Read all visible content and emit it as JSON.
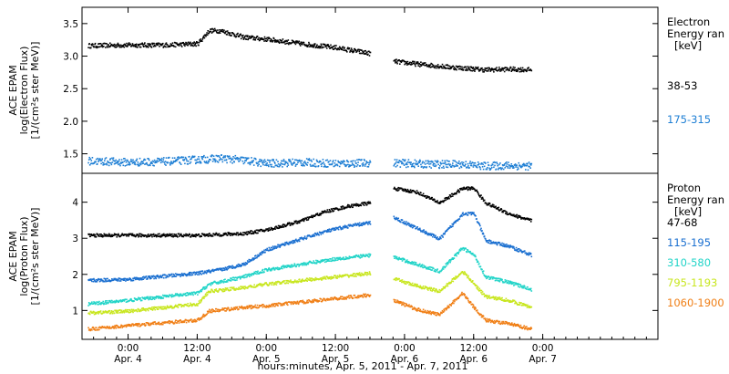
{
  "x_axis": {
    "title": "hours:minutes, Apr.  5, 2011 - Apr.  7, 2011",
    "range_hours": [
      -8,
      92
    ],
    "ticks": [
      {
        "h": 0,
        "time": "0:00",
        "day": "Apr. 4"
      },
      {
        "h": 12,
        "time": "12:00",
        "day": "Apr. 4"
      },
      {
        "h": 24,
        "time": "0:00",
        "day": "Apr. 5"
      },
      {
        "h": 36,
        "time": "12:00",
        "day": "Apr. 5"
      },
      {
        "h": 48,
        "time": "0:00",
        "day": "Apr. 6"
      },
      {
        "h": 60,
        "time": "12:00",
        "day": "Apr. 6"
      },
      {
        "h": 72,
        "time": "0:00",
        "day": "Apr. 7"
      }
    ]
  },
  "chart_data": [
    {
      "type": "scatter",
      "panel": "electron",
      "ylabel": [
        "ACE EPAM",
        "log(Electron Flux)",
        "[1/(cm²s ster MeV)]"
      ],
      "ylim": [
        1.2,
        3.75
      ],
      "yticks": [
        "1.5",
        "2.0",
        "2.5",
        "3.0",
        "3.5"
      ],
      "ytick_values": [
        1.5,
        2.0,
        2.5,
        3.0,
        3.5
      ],
      "legend_title": [
        "Electron",
        "Energy ran",
        "[keV]"
      ],
      "data_gap_hours": [
        42,
        46
      ],
      "series": [
        {
          "name": "38-53",
          "color": "#000000",
          "x": [
            -7,
            0,
            6,
            12,
            14,
            16,
            20,
            24,
            30,
            36,
            42,
            46,
            50,
            56,
            62,
            66,
            70
          ],
          "y": [
            3.17,
            3.18,
            3.18,
            3.2,
            3.4,
            3.4,
            3.3,
            3.27,
            3.2,
            3.14,
            3.05,
            2.93,
            2.89,
            2.84,
            2.8,
            2.81,
            2.8
          ]
        },
        {
          "name": "175-315",
          "color": "#1e7fd4",
          "x": [
            -7,
            0,
            6,
            12,
            16,
            20,
            24,
            30,
            36,
            42,
            46,
            52,
            58,
            62,
            66,
            70
          ],
          "y": [
            1.4,
            1.38,
            1.39,
            1.42,
            1.44,
            1.41,
            1.36,
            1.38,
            1.36,
            1.37,
            1.37,
            1.35,
            1.35,
            1.32,
            1.33,
            1.32
          ]
        }
      ]
    },
    {
      "type": "scatter",
      "panel": "proton",
      "ylabel": [
        "ACE EPAM",
        "log(Proton Flux)",
        "[1/(cm²s ster MeV)]"
      ],
      "ylim": [
        0.2,
        4.8
      ],
      "yticks": [
        "1",
        "2",
        "3",
        "4"
      ],
      "ytick_values": [
        1,
        2,
        3,
        4
      ],
      "legend_title": [
        "Proton",
        "Energy ran",
        "[keV]"
      ],
      "data_gap_hours": [
        42,
        46
      ],
      "series": [
        {
          "name": "47-68",
          "color": "#000000",
          "x": [
            -7,
            0,
            12,
            20,
            24,
            30,
            34,
            38,
            42,
            46,
            50,
            54,
            58,
            60,
            62,
            66,
            70
          ],
          "y": [
            3.1,
            3.1,
            3.1,
            3.15,
            3.25,
            3.5,
            3.75,
            3.9,
            4.0,
            4.4,
            4.3,
            4.0,
            4.4,
            4.4,
            4.0,
            3.7,
            3.5
          ]
        },
        {
          "name": "115-195",
          "color": "#1a6fd0",
          "x": [
            -7,
            0,
            12,
            16,
            20,
            24,
            30,
            34,
            38,
            42,
            46,
            50,
            54,
            58,
            60,
            62,
            66,
            70
          ],
          "y": [
            1.85,
            1.88,
            2.05,
            2.15,
            2.3,
            2.7,
            3.0,
            3.2,
            3.35,
            3.45,
            3.6,
            3.3,
            3.0,
            3.7,
            3.7,
            2.95,
            2.8,
            2.55
          ]
        },
        {
          "name": "310-580",
          "color": "#22d4c8",
          "x": [
            -7,
            0,
            12,
            14,
            20,
            24,
            30,
            36,
            42,
            46,
            50,
            54,
            58,
            60,
            62,
            66,
            70
          ],
          "y": [
            1.2,
            1.3,
            1.5,
            1.75,
            1.95,
            2.15,
            2.3,
            2.45,
            2.55,
            2.5,
            2.3,
            2.1,
            2.75,
            2.55,
            1.95,
            1.8,
            1.6
          ]
        },
        {
          "name": "795-1193",
          "color": "#c8e61e",
          "x": [
            -7,
            0,
            12,
            14,
            20,
            24,
            30,
            36,
            42,
            46,
            50,
            54,
            58,
            60,
            62,
            66,
            70
          ],
          "y": [
            0.95,
            1.0,
            1.2,
            1.55,
            1.65,
            1.75,
            1.85,
            1.95,
            2.05,
            1.9,
            1.7,
            1.55,
            2.1,
            1.75,
            1.4,
            1.3,
            1.1
          ]
        },
        {
          "name": "1060-1900",
          "color": "#f07f16",
          "x": [
            -7,
            0,
            12,
            14,
            20,
            24,
            30,
            36,
            42,
            46,
            50,
            54,
            58,
            60,
            62,
            66,
            70
          ],
          "y": [
            0.5,
            0.6,
            0.75,
            1.0,
            1.1,
            1.15,
            1.25,
            1.35,
            1.45,
            1.3,
            1.05,
            0.9,
            1.5,
            1.1,
            0.75,
            0.65,
            0.5
          ]
        }
      ]
    }
  ]
}
